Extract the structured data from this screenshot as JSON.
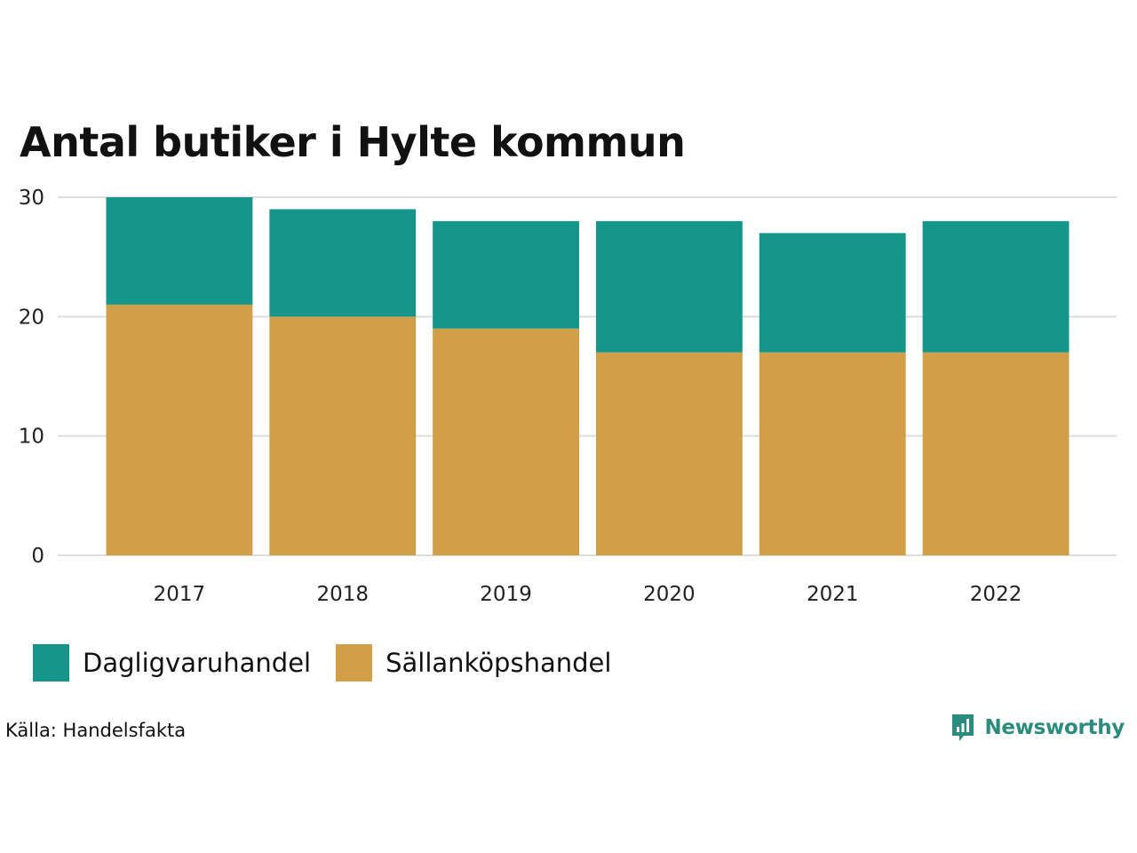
{
  "title": "Antal butiker i Hylte kommun",
  "colors": {
    "dagligvaruhandel": "#16968a",
    "sallankopshandel": "#d09f48",
    "grid": "#dddddd",
    "brand": "#2a8c7e"
  },
  "chart_data": {
    "type": "bar",
    "stacked": true,
    "title": "Antal butiker i Hylte kommun",
    "categories": [
      "2017",
      "2018",
      "2019",
      "2020",
      "2021",
      "2022"
    ],
    "series": [
      {
        "name": "Sällanköpshandel",
        "values": [
          21,
          20,
          19,
          17,
          17,
          17
        ]
      },
      {
        "name": "Dagligvaruhandel",
        "values": [
          9,
          9,
          9,
          11,
          10,
          11
        ]
      }
    ],
    "yticks": [
      0,
      10,
      20,
      30
    ],
    "ylim": [
      0,
      30
    ],
    "xlabel": "",
    "ylabel": "",
    "grid": true,
    "legend_position": "bottom-left"
  },
  "legend": [
    {
      "label": "Dagligvaruhandel",
      "color": "#16968a"
    },
    {
      "label": "Sällanköpshandel",
      "color": "#d09f48"
    }
  ],
  "source": "Källa: Handelsfakta",
  "logo": {
    "text": "Newsworthy",
    "icon": "newsworthy-chart-icon"
  }
}
